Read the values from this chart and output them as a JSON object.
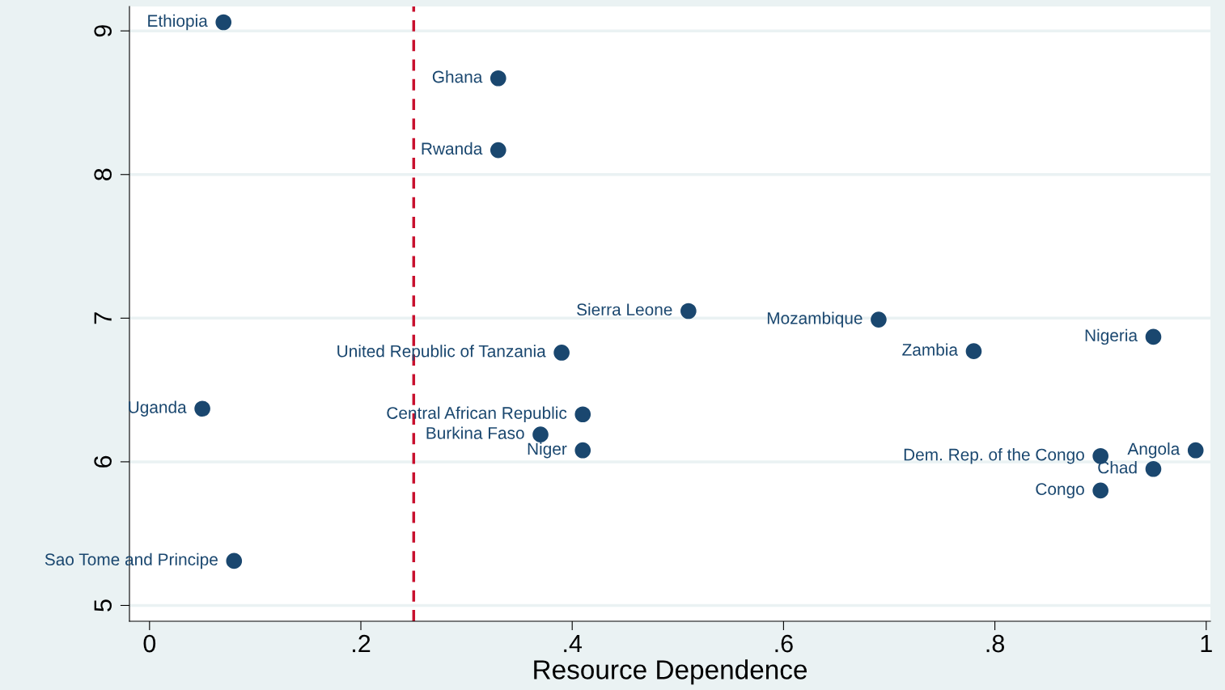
{
  "chart_data": {
    "type": "scatter",
    "xlabel": "Resource Dependence",
    "x": [
      0.07,
      0.33,
      0.33,
      0.51,
      0.69,
      0.39,
      0.78,
      0.95,
      0.05,
      0.41,
      0.37,
      0.41,
      0.9,
      0.99,
      0.95,
      0.9,
      0.08
    ],
    "series": [
      {
        "color": "#1a476f",
        "values": [
          9.06,
          8.67,
          8.17,
          7.05,
          6.99,
          6.76,
          6.77,
          6.87,
          6.37,
          6.33,
          6.19,
          6.08,
          6.04,
          6.08,
          5.95,
          5.8,
          5.31
        ]
      }
    ],
    "annotations": [
      {
        "text": "Ethiopia",
        "x": 0.07,
        "y": 9.06
      },
      {
        "text": "Ghana",
        "x": 0.33,
        "y": 8.67
      },
      {
        "text": "Rwanda",
        "x": 0.33,
        "y": 8.17
      },
      {
        "text": "Sierra Leone",
        "x": 0.51,
        "y": 7.05
      },
      {
        "text": "Mozambique",
        "x": 0.69,
        "y": 6.99
      },
      {
        "text": "United Republic of Tanzania",
        "x": 0.39,
        "y": 6.76
      },
      {
        "text": "Zambia",
        "x": 0.78,
        "y": 6.77
      },
      {
        "text": "Nigeria",
        "x": 0.95,
        "y": 6.87
      },
      {
        "text": "Uganda",
        "x": 0.05,
        "y": 6.37
      },
      {
        "text": "Central African Republic",
        "x": 0.41,
        "y": 6.33
      },
      {
        "text": "Burkina Faso",
        "x": 0.37,
        "y": 6.19
      },
      {
        "text": "Niger",
        "x": 0.41,
        "y": 6.08
      },
      {
        "text": "Dem. Rep. of the Congo",
        "x": 0.9,
        "y": 6.04
      },
      {
        "text": "Angola",
        "x": 0.99,
        "y": 6.08
      },
      {
        "text": "Chad",
        "x": 0.95,
        "y": 5.95
      },
      {
        "text": "Congo",
        "x": 0.9,
        "y": 5.8
      },
      {
        "text": "Sao Tome and Principe",
        "x": 0.08,
        "y": 5.31
      }
    ],
    "ref_lines": [
      {
        "axis": "x",
        "value": 0.25,
        "color": "#c8102e",
        "line_style": "dashed"
      }
    ],
    "xlim": [
      -0.019,
      1.004
    ],
    "ylim": [
      4.89,
      9.17
    ],
    "xticks": [
      {
        "value": 0,
        "label": "0"
      },
      {
        "value": 0.2,
        "label": ".2"
      },
      {
        "value": 0.4,
        "label": ".4"
      },
      {
        "value": 0.6,
        "label": ".6"
      },
      {
        "value": 0.8,
        "label": ".8"
      },
      {
        "value": 1,
        "label": "1"
      }
    ],
    "yticks": [
      5,
      6,
      7,
      8,
      9
    ],
    "grid": "y",
    "marker": "circle"
  }
}
